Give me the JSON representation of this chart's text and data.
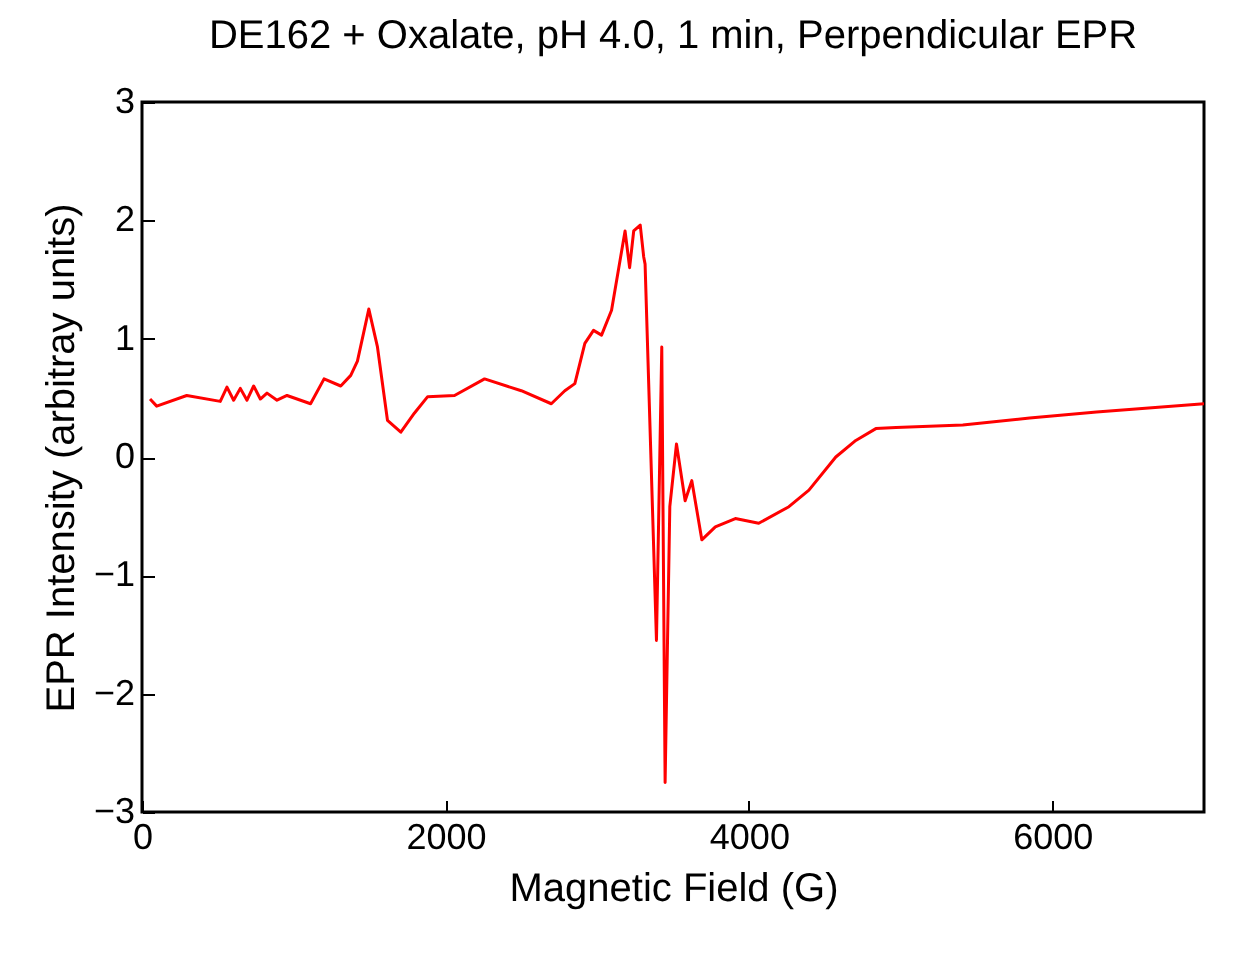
{
  "chart_data": {
    "type": "line",
    "title": "DE162 + Oxalate, pH 4.0, 1 min, Perpendicular EPR",
    "xlabel": "Magnetic Field (G)",
    "ylabel": "EPR Intensity (arbitray units)",
    "xlim": [
      0,
      7000
    ],
    "xticks": [
      0,
      2000,
      4000,
      6000
    ],
    "ylim": [
      -3,
      3
    ],
    "yticks": [
      -3,
      -2,
      -1,
      0,
      1,
      2,
      3
    ],
    "grid": false,
    "marker": "none",
    "line_style": "solid",
    "series": [
      {
        "color": "#ff0000",
        "x": [
          53,
          97,
          295,
          516,
          560,
          604,
          648,
          692,
          736,
          780,
          824,
          890,
          956,
          1111,
          1200,
          1310,
          1376,
          1420,
          1495,
          1552,
          1618,
          1706,
          1795,
          1883,
          2060,
          2258,
          2500,
          2698,
          2787,
          2853,
          2919,
          2976,
          3029,
          3095,
          3184,
          3214,
          3241,
          3284,
          3307,
          3316,
          3391,
          3426,
          3448,
          3479,
          3523,
          3580,
          3624,
          3690,
          3779,
          3911,
          4065,
          4264,
          4396,
          4573,
          4705,
          4837,
          4970,
          5410,
          5851,
          6292,
          7000
        ],
        "values": [
          0.49,
          0.43,
          0.52,
          0.47,
          0.59,
          0.48,
          0.58,
          0.48,
          0.6,
          0.49,
          0.54,
          0.48,
          0.52,
          0.45,
          0.66,
          0.6,
          0.69,
          0.81,
          1.25,
          0.93,
          0.31,
          0.21,
          0.37,
          0.51,
          0.52,
          0.66,
          0.56,
          0.45,
          0.56,
          0.62,
          0.96,
          1.07,
          1.03,
          1.24,
          1.91,
          1.6,
          1.91,
          1.96,
          1.69,
          1.63,
          -1.55,
          0.93,
          -2.75,
          -0.42,
          0.11,
          -0.37,
          -0.2,
          -0.7,
          -0.59,
          -0.52,
          -0.56,
          -0.42,
          -0.28,
          0.0,
          0.14,
          0.24,
          0.25,
          0.27,
          0.33,
          0.38,
          0.45
        ]
      }
    ]
  }
}
